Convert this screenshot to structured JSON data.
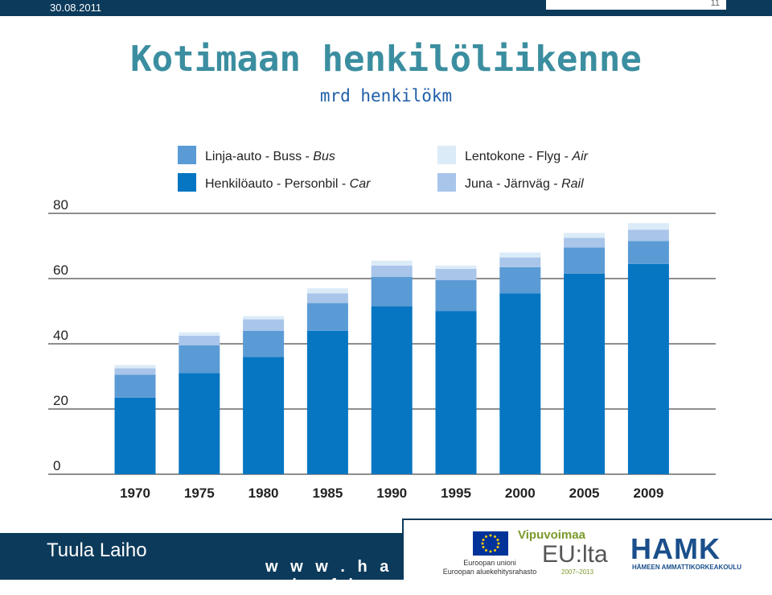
{
  "header": {
    "date": "30.08.2011",
    "page": "11"
  },
  "title": "Kotimaan henkilöliikenne",
  "subtitle": "mrd henkilökm",
  "colors": {
    "car": "#0676c3",
    "bus": "#5a9ad5",
    "rail": "#a9c6ea",
    "air": "#dcebf8",
    "topbar": "#0b3a5a",
    "title": "#3b8da0"
  },
  "chart_data": {
    "type": "bar",
    "stacked": true,
    "categories": [
      "1970",
      "1975",
      "1980",
      "1985",
      "1990",
      "1995",
      "2000",
      "2005",
      "2009"
    ],
    "series": [
      {
        "name": "Henkilöauto - Personbil - Car",
        "color": "#0676c3",
        "values": [
          23.5,
          31,
          36,
          44,
          51.5,
          50,
          55.5,
          61.5,
          64.5
        ]
      },
      {
        "name": "Linja-auto - Buss - Bus",
        "color": "#5a9ad5",
        "values": [
          7,
          8.5,
          8,
          8.5,
          9,
          9.5,
          8,
          8,
          7
        ]
      },
      {
        "name": "Juna - Järnväg - Rail",
        "color": "#a9c6ea",
        "values": [
          2,
          3,
          3.5,
          3,
          3.5,
          3.5,
          3,
          3,
          3.5
        ]
      },
      {
        "name": "Lentokone - Flyg - Air",
        "color": "#dcebf8",
        "values": [
          1,
          1,
          1,
          1.5,
          1.5,
          1,
          1.5,
          1.5,
          2
        ]
      }
    ],
    "legend_items": [
      {
        "text": "Linja-auto - Buss - ",
        "italic": "Bus",
        "color": "#5a9ad5"
      },
      {
        "text": "Henkilöauto - Personbil - ",
        "italic": "Car",
        "color": "#0676c3"
      },
      {
        "text": "Lentokone - Flyg - ",
        "italic": "Air",
        "color": "#dcebf8"
      },
      {
        "text": "Juna - Järnväg - ",
        "italic": "Rail",
        "color": "#a9c6ea"
      }
    ],
    "yticks": [
      0,
      20,
      40,
      60,
      80
    ],
    "ylim": [
      0,
      80
    ],
    "grid": true,
    "legend_position": "top"
  },
  "footer": {
    "author": "Tuula Laiho",
    "url": "w w w . h a m k . f i"
  },
  "logos": {
    "eu_text_1": "Euroopan unioni",
    "eu_text_2": "Euroopan aluekehitysrahasto",
    "vipu_title": "Vipuvoimaa",
    "vipu_eu": "EU:lta",
    "vipu_years": "2007–2013",
    "hamk": "HAMK",
    "hamk_sub": "HÄMEEN AMMATTIKORKEAKOULU"
  }
}
